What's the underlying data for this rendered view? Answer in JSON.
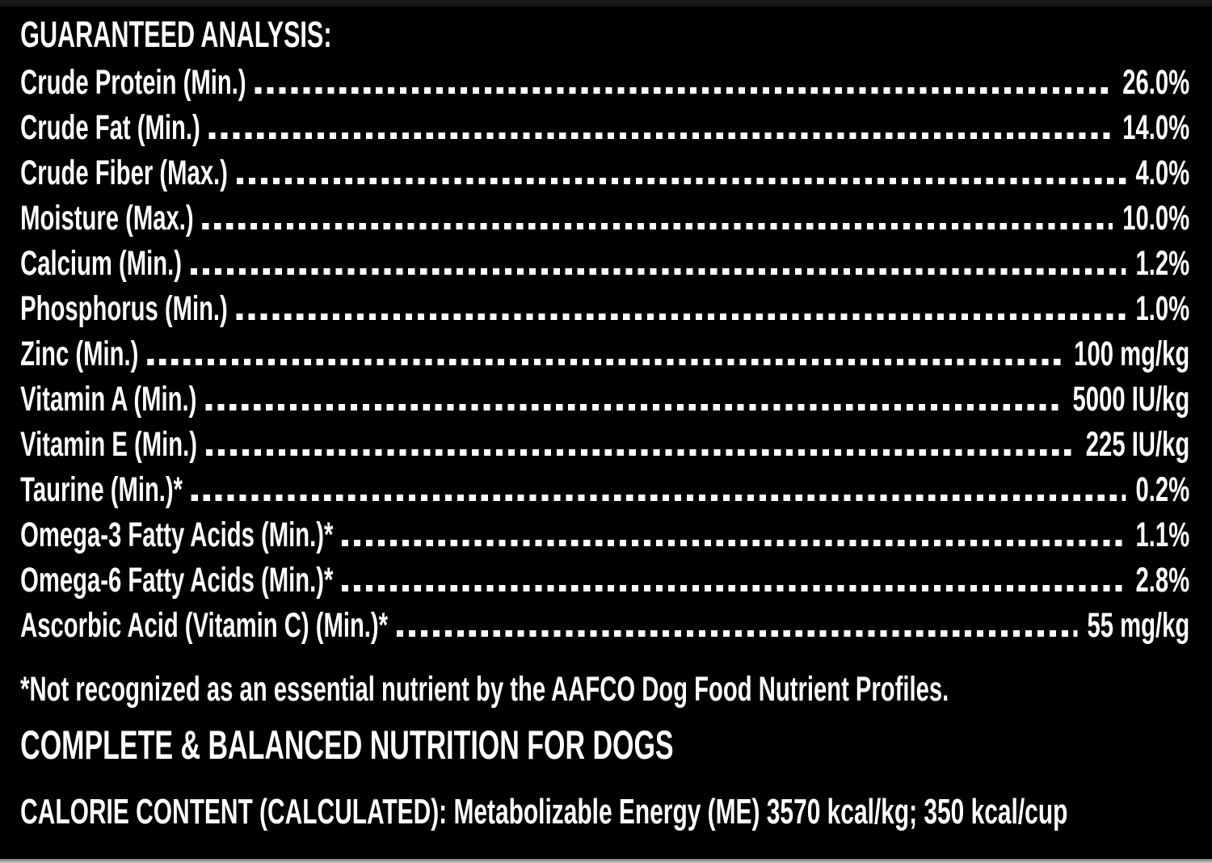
{
  "colors": {
    "background": "#000000",
    "text": "#ffffff",
    "bottom_edge": "#b3b3b3",
    "top_edge": "#181818"
  },
  "guaranteed_analysis": {
    "title": "GUARANTEED ANALYSIS:",
    "rows": [
      {
        "label": "Crude Protein (Min.)",
        "value": "26.0%"
      },
      {
        "label": "Crude Fat (Min.)",
        "value": "14.0%"
      },
      {
        "label": "Crude Fiber (Max.)",
        "value": "4.0%"
      },
      {
        "label": "Moisture (Max.)",
        "value": "10.0%"
      },
      {
        "label": "Calcium (Min.)",
        "value": "1.2%"
      },
      {
        "label": "Phosphorus (Min.)",
        "value": "1.0%"
      },
      {
        "label": "Zinc (Min.)",
        "value": "100 mg/kg"
      },
      {
        "label": "Vitamin A (Min.)",
        "value": "5000 IU/kg"
      },
      {
        "label": "Vitamin E (Min.)",
        "value": "225 IU/kg"
      },
      {
        "label": "Taurine (Min.)*",
        "value": "0.2%"
      },
      {
        "label": "Omega-3 Fatty Acids (Min.)*",
        "value": "1.1%"
      },
      {
        "label": "Omega-6 Fatty Acids (Min.)*",
        "value": "2.8%"
      },
      {
        "label": "Ascorbic Acid (Vitamin C) (Min.)*",
        "value": "55 mg/kg"
      }
    ],
    "footnote": "*Not recognized as an essential nutrient by the AAFCO Dog Food Nutrient Profiles.",
    "subtitle": "COMPLETE & BALANCED NUTRITION FOR DOGS",
    "calorie_line": "CALORIE CONTENT (CALCULATED): Metabolizable Energy (ME) 3570 kcal/kg; 350 kcal/cup"
  }
}
